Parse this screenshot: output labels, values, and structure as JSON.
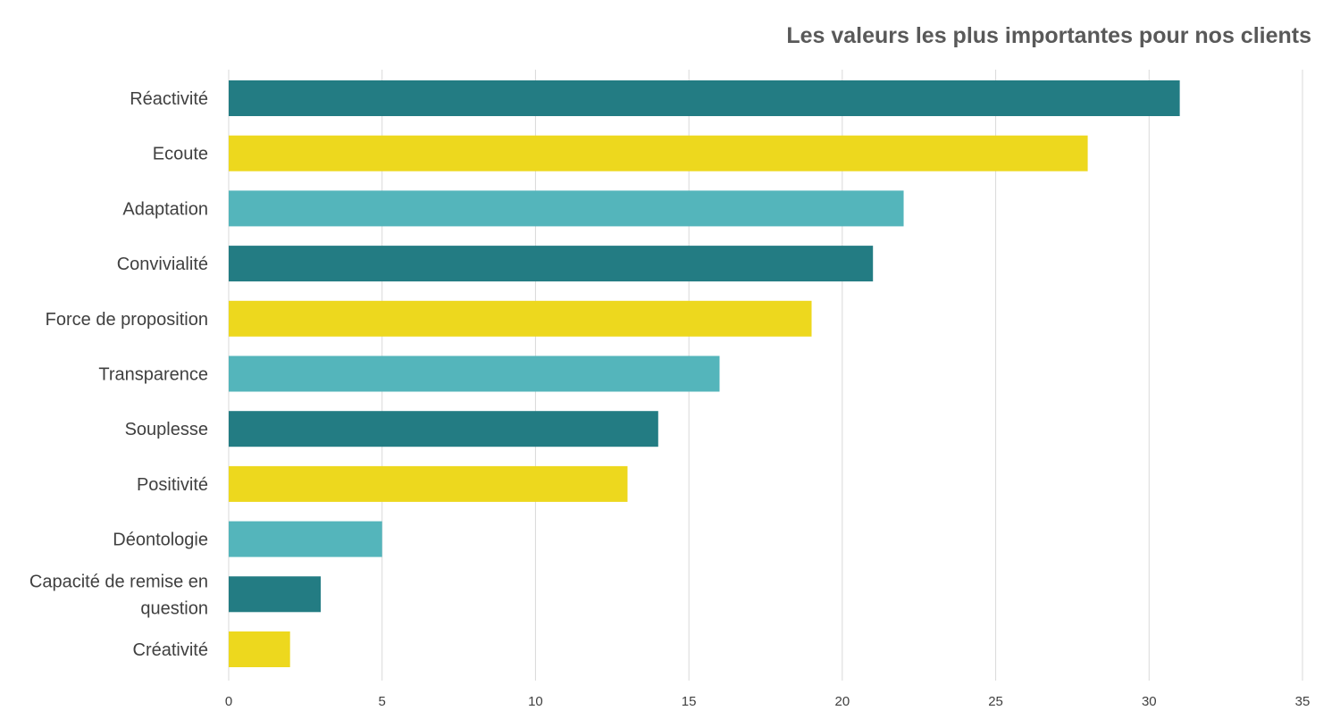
{
  "chart_data": {
    "type": "bar",
    "orientation": "horizontal",
    "title": "Les valeurs les plus importantes pour nos clients",
    "xlabel": "",
    "ylabel": "",
    "categories": [
      "Réactivité",
      "Ecoute",
      "Adaptation",
      "Convivialité",
      "Force de proposition",
      "Transparence",
      "Souplesse",
      "Positivité",
      "Déontologie",
      "Capacité de remise en question",
      "Créativité"
    ],
    "category_label_lines": [
      [
        "Réactivité"
      ],
      [
        "Ecoute"
      ],
      [
        "Adaptation"
      ],
      [
        "Convivialité"
      ],
      [
        "Force de proposition"
      ],
      [
        "Transparence"
      ],
      [
        "Souplesse"
      ],
      [
        "Positivité"
      ],
      [
        "Déontologie"
      ],
      [
        "Capacité de remise en",
        "question"
      ],
      [
        "Créativité"
      ]
    ],
    "values": [
      31,
      28,
      22,
      21,
      19,
      16,
      14,
      13,
      5,
      3,
      2
    ],
    "xlim": [
      0,
      35
    ],
    "xticks": [
      "0",
      "5",
      "10",
      "15",
      "20",
      "25",
      "30",
      "35"
    ],
    "bar_colors": [
      "#237C83",
      "#EDD81E",
      "#54B5BB",
      "#237C83",
      "#EDD81E",
      "#54B5BB",
      "#237C83",
      "#EDD81E",
      "#54B5BB",
      "#237C83",
      "#EDD81E"
    ],
    "grid": "vertical",
    "legend": "none"
  },
  "colors": {
    "gridline": "#D9D9D9",
    "label_text": "#404040",
    "title_text": "#595959"
  }
}
